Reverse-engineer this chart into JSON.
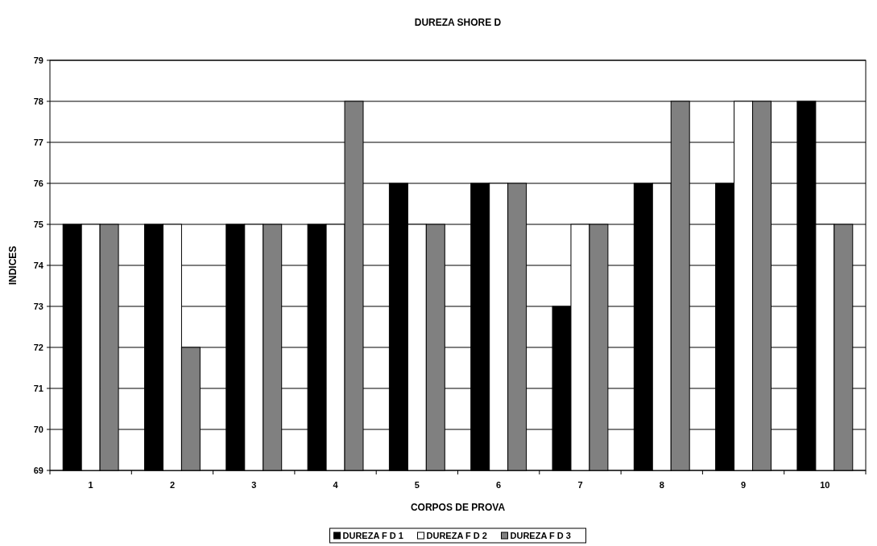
{
  "chart_data": {
    "type": "bar",
    "title": "DUREZA SHORE D",
    "xlabel": "CORPOS DE PROVA",
    "ylabel": "INDICES",
    "categories": [
      "1",
      "2",
      "3",
      "4",
      "5",
      "6",
      "7",
      "8",
      "9",
      "10"
    ],
    "series": [
      {
        "name": "DUREZA F D 1",
        "color": "#000000",
        "values": [
          75,
          75,
          75,
          75,
          76,
          76,
          73,
          76,
          76,
          78
        ]
      },
      {
        "name": "DUREZA F D 2",
        "color": "#ffffff",
        "values": [
          75,
          75,
          75,
          75,
          75,
          76,
          75,
          76,
          78,
          75
        ]
      },
      {
        "name": "DUREZA F D 3",
        "color": "#808080",
        "values": [
          75,
          72,
          75,
          78,
          75,
          76,
          75,
          78,
          78,
          75
        ]
      }
    ],
    "ylim": [
      69,
      79
    ],
    "yticks": [
      69,
      70,
      71,
      72,
      73,
      74,
      75,
      76,
      77,
      78,
      79
    ],
    "grid": "y",
    "legend": "bottom"
  }
}
